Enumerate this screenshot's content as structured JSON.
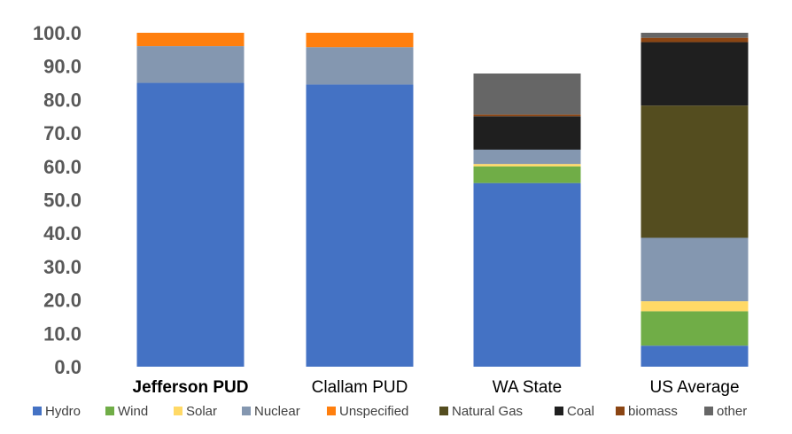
{
  "chart_data": {
    "type": "bar",
    "stacked": true,
    "title": "",
    "xlabel": "",
    "ylabel": "",
    "ylim": [
      0,
      100
    ],
    "yticks": [
      "0.0",
      "10.0",
      "20.0",
      "30.0",
      "40.0",
      "50.0",
      "60.0",
      "70.0",
      "80.0",
      "90.0",
      "100.0"
    ],
    "categories": [
      "Jefferson PUD",
      "Clallam PUD",
      "WA State",
      "US Average"
    ],
    "grid": false,
    "legend_position": "bottom",
    "series": [
      {
        "name": "Hydro",
        "color": "#4472c4",
        "values": [
          85.0,
          84.5,
          55.0,
          6.3
        ]
      },
      {
        "name": "Wind",
        "color": "#70ad47",
        "values": [
          0.0,
          0.0,
          5.0,
          10.3
        ]
      },
      {
        "name": "Solar",
        "color": "#ffd966",
        "values": [
          0.0,
          0.0,
          0.7,
          3.0
        ]
      },
      {
        "name": "Nuclear",
        "color": "#8497b0",
        "values": [
          11.0,
          11.2,
          4.3,
          19.0
        ]
      },
      {
        "name": "Unspecified",
        "color": "#ff7f0e",
        "values": [
          4.0,
          4.3,
          0.0,
          0.0
        ]
      },
      {
        "name": "Natural Gas",
        "color": "#544d1f",
        "values": [
          0.0,
          0.0,
          0.0,
          39.6
        ]
      },
      {
        "name": "Coal",
        "color": "#1f1f1f",
        "values": [
          0.0,
          0.0,
          10.0,
          19.0
        ]
      },
      {
        "name": "biomass",
        "color": "#8b4513",
        "values": [
          0.0,
          0.0,
          0.5,
          1.3
        ]
      },
      {
        "name": "other",
        "color": "#666666",
        "values": [
          0.0,
          0.0,
          12.3,
          1.5
        ]
      }
    ]
  }
}
